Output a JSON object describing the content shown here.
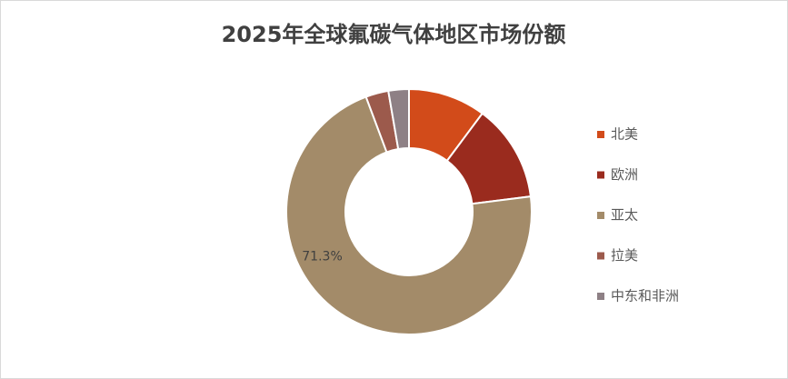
{
  "chart_data": {
    "type": "pie",
    "title": "2025年全球氟碳气体地区市场份额",
    "categories": [
      "北美",
      "欧洲",
      "亚太",
      "拉美",
      "中东和非洲"
    ],
    "values": [
      10.2,
      12.8,
      71.3,
      3.0,
      2.7
    ],
    "value_labels": [
      null,
      null,
      "71.3%",
      null,
      null
    ],
    "colors": [
      "#d24b1a",
      "#9a2b1e",
      "#a38b69",
      "#9c5a4c",
      "#8e8085"
    ],
    "donut": true,
    "legend": "right"
  }
}
